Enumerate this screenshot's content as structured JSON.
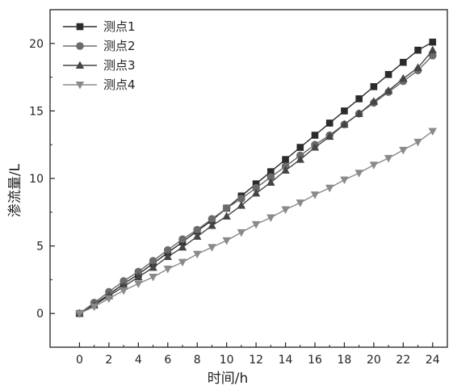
{
  "chart_data": {
    "type": "line",
    "title": "",
    "xlabel": "时间/h",
    "ylabel": "渗流量/L",
    "xlim": [
      -2,
      25
    ],
    "ylim": [
      -2.5,
      22.5
    ],
    "xticks": [
      0,
      2,
      4,
      6,
      8,
      10,
      12,
      14,
      16,
      18,
      20,
      22,
      24
    ],
    "yticks": [
      0,
      5,
      10,
      15,
      20
    ],
    "grid": false,
    "legend_position": "top-left",
    "x": [
      0,
      1,
      2,
      3,
      4,
      5,
      6,
      7,
      8,
      9,
      10,
      11,
      12,
      13,
      14,
      15,
      16,
      17,
      18,
      19,
      20,
      21,
      22,
      23,
      24
    ],
    "series": [
      {
        "name": "测点1",
        "marker": "square",
        "color": "#2b2b2b",
        "values": [
          0,
          0.7,
          1.4,
          2.2,
          2.9,
          3.7,
          4.5,
          5.3,
          6.1,
          6.9,
          7.8,
          8.7,
          9.6,
          10.5,
          11.4,
          12.3,
          13.2,
          14.1,
          15.0,
          15.9,
          16.8,
          17.7,
          18.6,
          19.5,
          20.1
        ]
      },
      {
        "name": "测点2",
        "marker": "circle",
        "color": "#6b6b6b",
        "values": [
          0,
          0.8,
          1.6,
          2.4,
          3.1,
          3.9,
          4.7,
          5.5,
          6.2,
          7.0,
          7.8,
          8.5,
          9.3,
          10.1,
          10.9,
          11.7,
          12.5,
          13.2,
          14.0,
          14.8,
          15.6,
          16.4,
          17.2,
          18.0,
          19.1
        ]
      },
      {
        "name": "测点3",
        "marker": "triangle-up",
        "color": "#454545",
        "values": [
          0,
          0.6,
          1.3,
          2.0,
          2.7,
          3.4,
          4.2,
          4.9,
          5.7,
          6.5,
          7.2,
          8.0,
          8.9,
          9.7,
          10.6,
          11.4,
          12.3,
          13.1,
          14.0,
          14.8,
          15.7,
          16.5,
          17.4,
          18.2,
          19.5
        ]
      },
      {
        "name": "测点4",
        "marker": "triangle-down",
        "color": "#8a8a8a",
        "values": [
          0,
          0.5,
          1.1,
          1.7,
          2.2,
          2.7,
          3.3,
          3.8,
          4.4,
          4.9,
          5.4,
          6.0,
          6.6,
          7.1,
          7.7,
          8.2,
          8.8,
          9.3,
          9.9,
          10.4,
          11.0,
          11.5,
          12.1,
          12.7,
          13.5
        ]
      }
    ]
  }
}
